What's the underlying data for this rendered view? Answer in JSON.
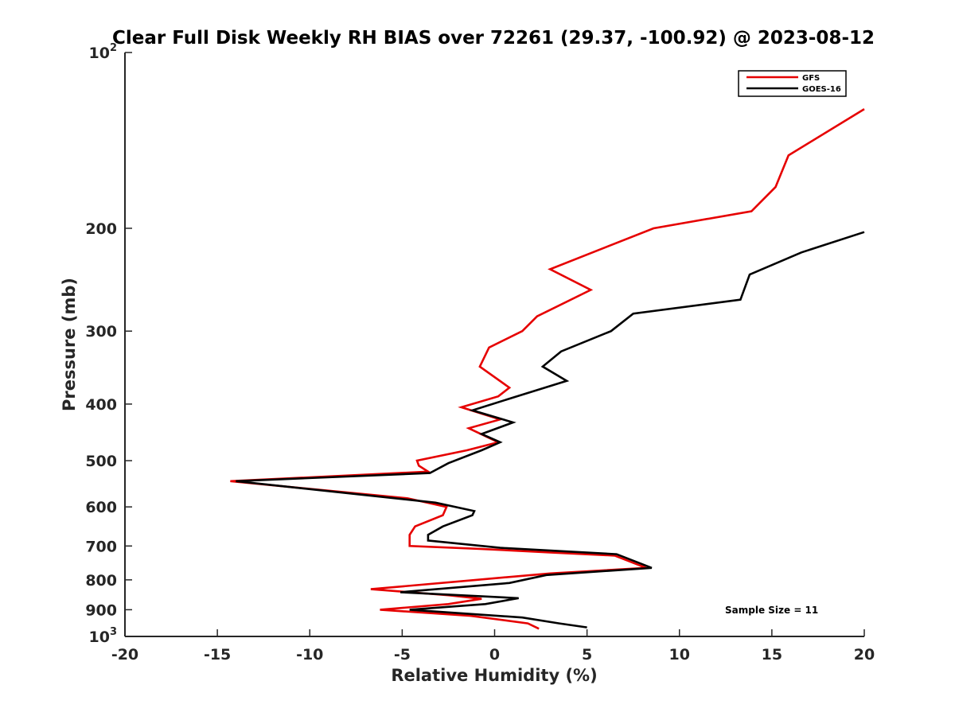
{
  "chart_data": {
    "type": "line",
    "title": "Clear Full Disk Weekly RH BIAS over 72261 (29.37, -100.92) @ 2023-08-12",
    "xlabel": "Relative Humidity (%)",
    "ylabel": "Pressure (mb)",
    "xlim": [
      -20,
      20
    ],
    "ylim": [
      100,
      1000
    ],
    "y_scale": "log",
    "y_reversed": true,
    "grid": false,
    "legend_position": "top-right",
    "x_ticks": [
      {
        "value": -20,
        "label": "-20"
      },
      {
        "value": -15,
        "label": "-15"
      },
      {
        "value": -10,
        "label": "-10"
      },
      {
        "value": -5,
        "label": "-5"
      },
      {
        "value": 0,
        "label": "0"
      },
      {
        "value": 5,
        "label": "5"
      },
      {
        "value": 10,
        "label": "10"
      },
      {
        "value": 15,
        "label": "15"
      },
      {
        "value": 20,
        "label": "20"
      }
    ],
    "y_ticks": [
      {
        "value": 100,
        "base": "10",
        "exp": "2"
      },
      {
        "value": 200,
        "label": "200"
      },
      {
        "value": 300,
        "label": "300"
      },
      {
        "value": 400,
        "label": "400"
      },
      {
        "value": 500,
        "label": "500"
      },
      {
        "value": 600,
        "label": "600"
      },
      {
        "value": 700,
        "label": "700"
      },
      {
        "value": 800,
        "label": "800"
      },
      {
        "value": 900,
        "label": "900"
      },
      {
        "value": 1000,
        "base": "10",
        "exp": "3"
      }
    ],
    "series": [
      {
        "name": "GFS",
        "color": "#e60000",
        "points": [
          [
            20.0,
            125
          ],
          [
            15.9,
            150
          ],
          [
            15.2,
            170
          ],
          [
            13.9,
            187
          ],
          [
            8.6,
            200
          ],
          [
            3.0,
            235
          ],
          [
            5.2,
            255
          ],
          [
            2.3,
            283
          ],
          [
            1.5,
            300
          ],
          [
            -0.3,
            320
          ],
          [
            -0.8,
            345
          ],
          [
            0.8,
            375
          ],
          [
            0.2,
            388
          ],
          [
            -1.8,
            405
          ],
          [
            0.3,
            425
          ],
          [
            -1.4,
            440
          ],
          [
            0.2,
            465
          ],
          [
            -1.5,
            480
          ],
          [
            -4.2,
            500
          ],
          [
            -4.1,
            510
          ],
          [
            -3.6,
            522
          ],
          [
            -14.3,
            542
          ],
          [
            -4.7,
            580
          ],
          [
            -2.6,
            600
          ],
          [
            -2.8,
            620
          ],
          [
            -4.3,
            648
          ],
          [
            -4.6,
            670
          ],
          [
            -4.6,
            700
          ],
          [
            -0.8,
            708
          ],
          [
            3.0,
            718
          ],
          [
            6.5,
            727
          ],
          [
            8.2,
            763
          ],
          [
            3.0,
            780
          ],
          [
            -1.0,
            800
          ],
          [
            -6.7,
            830
          ],
          [
            -2.5,
            850
          ],
          [
            -0.7,
            862
          ],
          [
            -2.5,
            880
          ],
          [
            -6.2,
            900
          ],
          [
            -1.3,
            922
          ],
          [
            1.8,
            950
          ],
          [
            2.4,
            970
          ]
        ]
      },
      {
        "name": "GOES-16",
        "color": "#000000",
        "points": [
          [
            20.0,
            203
          ],
          [
            16.6,
            220
          ],
          [
            13.8,
            240
          ],
          [
            13.3,
            265
          ],
          [
            7.5,
            280
          ],
          [
            6.3,
            300
          ],
          [
            3.6,
            325
          ],
          [
            2.6,
            345
          ],
          [
            3.9,
            365
          ],
          [
            1.2,
            388
          ],
          [
            -1.2,
            410
          ],
          [
            1.0,
            430
          ],
          [
            -0.7,
            450
          ],
          [
            0.3,
            465
          ],
          [
            -0.7,
            480
          ],
          [
            -2.5,
            505
          ],
          [
            -3.5,
            525
          ],
          [
            -14.0,
            542
          ],
          [
            -3.2,
            590
          ],
          [
            -1.1,
            610
          ],
          [
            -1.2,
            620
          ],
          [
            -2.8,
            648
          ],
          [
            -3.6,
            670
          ],
          [
            -3.6,
            685
          ],
          [
            0.3,
            705
          ],
          [
            6.6,
            723
          ],
          [
            8.5,
            763
          ],
          [
            2.8,
            785
          ],
          [
            0.8,
            810
          ],
          [
            -5.1,
            840
          ],
          [
            1.3,
            860
          ],
          [
            -0.5,
            880
          ],
          [
            -4.6,
            900
          ],
          [
            1.5,
            928
          ],
          [
            3.5,
            950
          ],
          [
            5.0,
            965
          ]
        ]
      }
    ],
    "annotations": [
      {
        "text": "Sample Size = 11"
      }
    ]
  }
}
